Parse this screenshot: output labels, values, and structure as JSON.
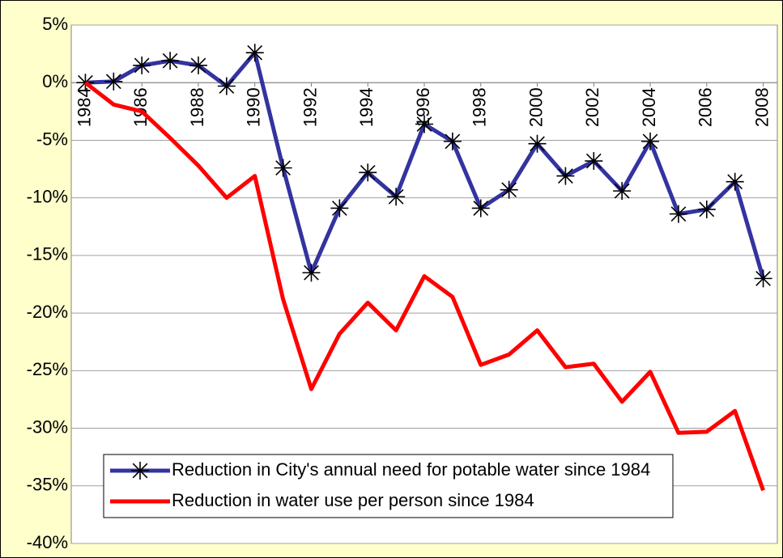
{
  "chart_data": {
    "type": "line",
    "x": [
      1984,
      1985,
      1986,
      1987,
      1988,
      1989,
      1990,
      1991,
      1992,
      1993,
      1994,
      1995,
      1996,
      1997,
      1998,
      1999,
      2000,
      2001,
      2002,
      2003,
      2004,
      2005,
      2006,
      2007,
      2008
    ],
    "xlim": [
      1983.5,
      2008.5
    ],
    "xticks": [
      1984,
      1986,
      1988,
      1990,
      1992,
      1994,
      1996,
      1998,
      2000,
      2002,
      2004,
      2006,
      2008
    ],
    "ylim": [
      -40,
      5
    ],
    "yticks": [
      {
        "value": 5,
        "label": "5%"
      },
      {
        "value": 0,
        "label": "0%"
      },
      {
        "value": -5,
        "label": "-5%"
      },
      {
        "value": -10,
        "label": "-10%"
      },
      {
        "value": -15,
        "label": "-15%"
      },
      {
        "value": -20,
        "label": "-20%"
      },
      {
        "value": -25,
        "label": "-25%"
      },
      {
        "value": -30,
        "label": "-30%"
      },
      {
        "value": -35,
        "label": "-35%"
      },
      {
        "value": -40,
        "label": "-40%"
      }
    ],
    "grid": true,
    "series": [
      {
        "name": "Reduction in City's annual need for potable water since 1984",
        "color": "#3333a0",
        "marker": "star",
        "values": [
          0,
          0.1,
          1.5,
          1.9,
          1.5,
          -0.3,
          2.6,
          -7.4,
          -16.5,
          -10.9,
          -7.8,
          -9.9,
          -3.6,
          -5.1,
          -10.9,
          -9.3,
          -5.3,
          -8.1,
          -6.8,
          -9.4,
          -5.1,
          -11.4,
          -11.0,
          -8.6,
          -17.0
        ]
      },
      {
        "name": "Reduction in water use per person since 1984",
        "color": "#ff0000",
        "values": [
          0,
          -1.9,
          -2.5,
          -4.8,
          -7.2,
          -10.0,
          -8.1,
          -18.8,
          -26.6,
          -21.8,
          -19.1,
          -21.5,
          -16.8,
          -18.6,
          -24.5,
          -23.6,
          -21.5,
          -24.7,
          -24.4,
          -27.7,
          -25.1,
          -30.4,
          -30.3,
          -28.5,
          -35.4
        ]
      }
    ]
  }
}
